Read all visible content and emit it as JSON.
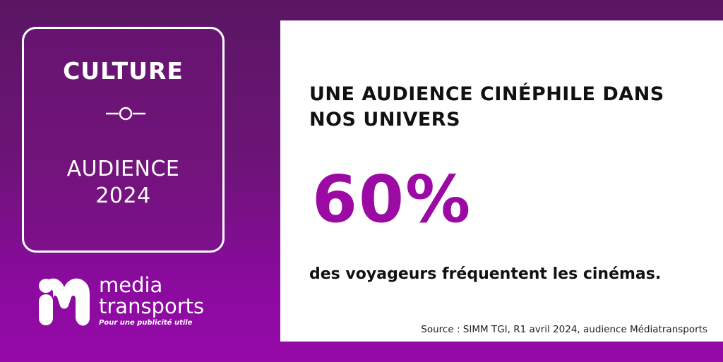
{
  "badge": {
    "category": "CULTURE",
    "subtitle_line1": "AUDIENCE",
    "subtitle_line2": "2024"
  },
  "logo": {
    "name_line1": "media",
    "name_line2": "transports",
    "tagline": "Pour une publicité utile"
  },
  "card": {
    "headline_line1": "UNE AUDIENCE CINÉPHILE DANS",
    "headline_line2": "NOS UNIVERS",
    "stat_value": "60%",
    "stat_description": "des voyageurs fréquentent les cinémas.",
    "source": "Source : SIMM TGI, R1 avril 2024, audience Médiatransports"
  },
  "colors": {
    "brand_purple": "#9b0aa3",
    "background_dark": "#5a1663",
    "background_light": "#950aa8"
  }
}
